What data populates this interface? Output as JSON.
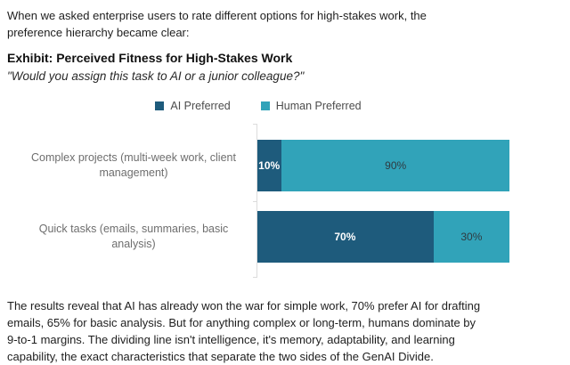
{
  "intro_paragraph": "When we asked enterprise users to rate different options for high-stakes work, the\npreference hierarchy became clear:",
  "chart_data": {
    "type": "bar",
    "orientation": "horizontal",
    "stacked": true,
    "title": "Exhibit: Perceived Fitness for High-Stakes Work",
    "subtitle": "\"Would you assign this task to AI or a junior colleague?\"",
    "categories": [
      "Complex projects (multi-week work, client management)",
      "Quick tasks (emails, summaries, basic analysis)"
    ],
    "series": [
      {
        "name": "AI Preferred",
        "values": [
          10,
          70
        ],
        "color": "#1e5b7c",
        "label_color": "#ffffff"
      },
      {
        "name": "Human Preferred",
        "values": [
          90,
          30
        ],
        "color": "#31a3b9",
        "label_color": "#2f3a40"
      }
    ],
    "value_format": "percent",
    "xlim": [
      0,
      100
    ],
    "legend_position": "top",
    "grid": false,
    "axis_color": "#dcdcdc"
  },
  "conclusion_paragraph": "The results reveal that AI has already won the war for simple work, 70% prefer AI for drafting\nemails, 65% for basic analysis. But for anything complex or long-term, humans dominate by\n9-to-1 margins. The dividing line isn't intelligence, it's memory, adaptability, and learning\ncapability, the exact characteristics that separate the two sides of the GenAI Divide."
}
